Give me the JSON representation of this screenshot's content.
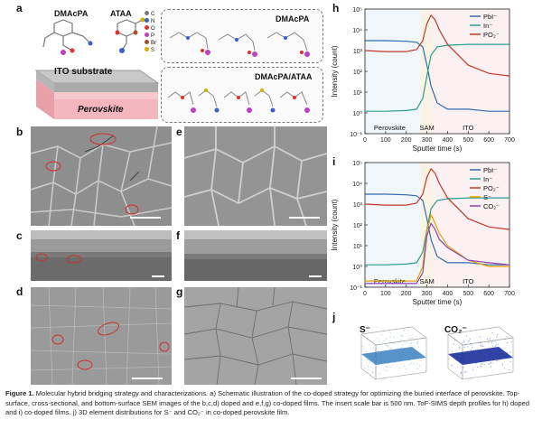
{
  "panels": {
    "a": "a",
    "b": "b",
    "c": "c",
    "d": "d",
    "e": "e",
    "f": "f",
    "g": "g",
    "h": "h",
    "i": "i",
    "j": "j"
  },
  "schematic": {
    "mol1": "DMAcPA",
    "mol2": "ATAA",
    "legend": [
      "C",
      "N",
      "O",
      "P",
      "Br",
      "S"
    ],
    "legend_colors": [
      "#7a7a7a",
      "#3a5fcd",
      "#e03030",
      "#c040c0",
      "#a0522d",
      "#d4b000"
    ],
    "substrate": "ITO substrate",
    "perovskite": "Perovskite",
    "box1_title": "DMAcPA",
    "box2_title": "DMAcPA/ATAA"
  },
  "j_labels": [
    "S⁻",
    "CO₂⁻"
  ],
  "chart_data": [
    {
      "type": "line",
      "panel": "h",
      "xlabel": "Sputter time (s)",
      "ylabel": "Intensity (count)",
      "xlim": [
        0,
        700
      ],
      "ylim_log10": [
        -1,
        5
      ],
      "x_ticks": [
        "0",
        "100",
        "200",
        "300",
        "400",
        "500",
        "600",
        "700"
      ],
      "y_ticks": [
        "10⁻¹",
        "10⁰",
        "10¹",
        "10²",
        "10³",
        "10⁴",
        "10⁵"
      ],
      "regions": [
        "Perovskite",
        "SAM",
        "ITO"
      ],
      "series": [
        {
          "name": "PbI⁻",
          "color": "#2f6db5",
          "x": [
            0,
            100,
            200,
            250,
            280,
            300,
            320,
            350,
            400,
            500,
            600,
            700
          ],
          "y": [
            3000,
            3000,
            2800,
            2500,
            1500,
            200,
            20,
            3,
            1.5,
            1.5,
            1.2,
            1.2
          ]
        },
        {
          "name": "In⁻",
          "color": "#2a9d8f",
          "x": [
            0,
            100,
            200,
            250,
            280,
            300,
            320,
            350,
            400,
            500,
            600,
            700
          ],
          "y": [
            1.2,
            1.2,
            1.3,
            1.5,
            5,
            60,
            600,
            1500,
            1800,
            2000,
            2000,
            2000
          ]
        },
        {
          "name": "PO₂⁻",
          "color": "#c0392b",
          "x": [
            0,
            100,
            200,
            250,
            280,
            300,
            320,
            340,
            360,
            400,
            500,
            600,
            700
          ],
          "y": [
            1000,
            900,
            900,
            1100,
            3000,
            20000,
            50000,
            30000,
            10000,
            2000,
            200,
            80,
            60
          ]
        }
      ]
    },
    {
      "type": "line",
      "panel": "i",
      "xlabel": "Sputter time (s)",
      "ylabel": "Intensity (count)",
      "xlim": [
        0,
        700
      ],
      "ylim_log10": [
        -1,
        5
      ],
      "x_ticks": [
        "0",
        "100",
        "200",
        "300",
        "400",
        "500",
        "600",
        "700"
      ],
      "y_ticks": [
        "10⁻¹",
        "10⁰",
        "10¹",
        "10²",
        "10³",
        "10⁴",
        "10⁵"
      ],
      "regions": [
        "Perovskite",
        "SAM",
        "ITO"
      ],
      "series": [
        {
          "name": "PbI⁻",
          "color": "#2f6db5",
          "x": [
            0,
            100,
            200,
            250,
            280,
            300,
            320,
            350,
            400,
            500,
            600,
            700
          ],
          "y": [
            3000,
            3000,
            2800,
            2500,
            1500,
            200,
            20,
            3,
            1.5,
            1.5,
            1.2,
            1.2
          ]
        },
        {
          "name": "In⁻",
          "color": "#2a9d8f",
          "x": [
            0,
            100,
            200,
            250,
            280,
            300,
            320,
            350,
            400,
            500,
            600,
            700
          ],
          "y": [
            1.2,
            1.2,
            1.3,
            1.5,
            5,
            60,
            600,
            1500,
            1800,
            2000,
            2000,
            2000
          ]
        },
        {
          "name": "PO₂⁻",
          "color": "#c0392b",
          "x": [
            0,
            100,
            200,
            250,
            280,
            300,
            320,
            340,
            360,
            400,
            500,
            600,
            700
          ],
          "y": [
            1000,
            900,
            900,
            1100,
            3000,
            20000,
            50000,
            30000,
            10000,
            2000,
            200,
            80,
            60
          ]
        },
        {
          "name": "S⁻",
          "color": "#e6a000",
          "x": [
            0,
            250,
            280,
            300,
            320,
            340,
            360,
            400,
            500,
            600,
            700
          ],
          "y": [
            0.2,
            0.2,
            1,
            50,
            300,
            120,
            40,
            10,
            2,
            1,
            1
          ]
        },
        {
          "name": "CO₂⁻",
          "color": "#8e44ad",
          "x": [
            0,
            250,
            280,
            300,
            320,
            340,
            360,
            400,
            500,
            600,
            700
          ],
          "y": [
            0.15,
            0.15,
            0.5,
            30,
            120,
            60,
            20,
            8,
            2,
            1.5,
            1.2
          ]
        }
      ]
    }
  ],
  "caption": {
    "label": "Figure 1.",
    "text": "Molecular hybrid bridging strategy and characterizations. a) Schematic illustration of the co-doped strategy for optimizing the buried interface of perovskite. Top-surface, cross-sectional, and bottom-surface SEM images of the b,c,d) doped and e,f,g) co-doped films. The insert scale bar is 500 nm. ToF-SIMS depth profiles for h) doped and i) co-doped films. j) 3D element distributions for S⁻ and CO₂⁻ in co-doped perovskite film."
  }
}
